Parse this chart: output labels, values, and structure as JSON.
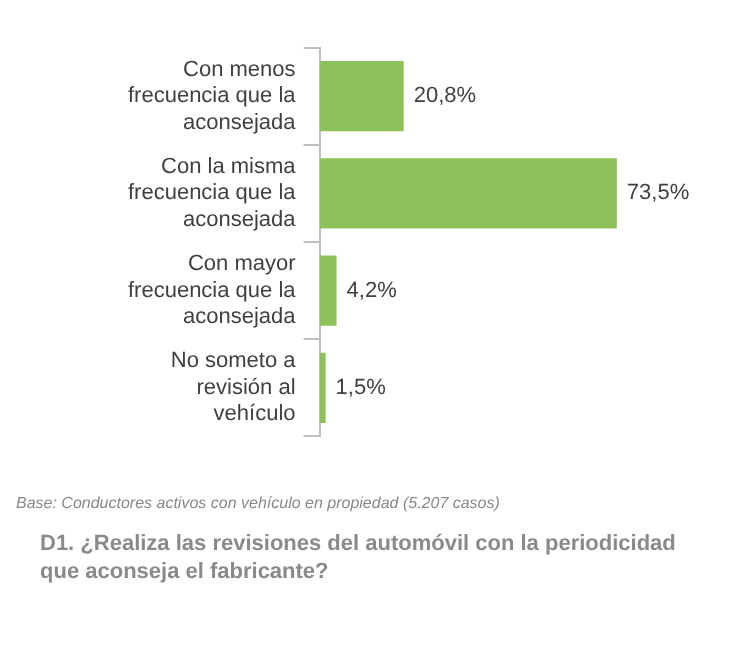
{
  "chart_data": {
    "type": "bar",
    "orientation": "horizontal",
    "title": "D1.  ¿Realiza las revisiones del automóvil con la periodicidad que aconseja el fabricante?",
    "categories": [
      "Con menos frecuencia que la aconsejada",
      "Con la misma frecuencia que la aconsejada",
      "Con mayor frecuencia que la aconsejada",
      "No someto a revisión al vehículo"
    ],
    "values": [
      20.8,
      73.5,
      4.2,
      1.5
    ],
    "value_labels": [
      "20,8%",
      "73,5%",
      "4,2%",
      "1,5%"
    ],
    "color": "#8dc25a",
    "annotations": [
      "Base: Conductores activos con vehículo en propiedad (5.207 casos)"
    ],
    "legend": false,
    "grid": false
  }
}
